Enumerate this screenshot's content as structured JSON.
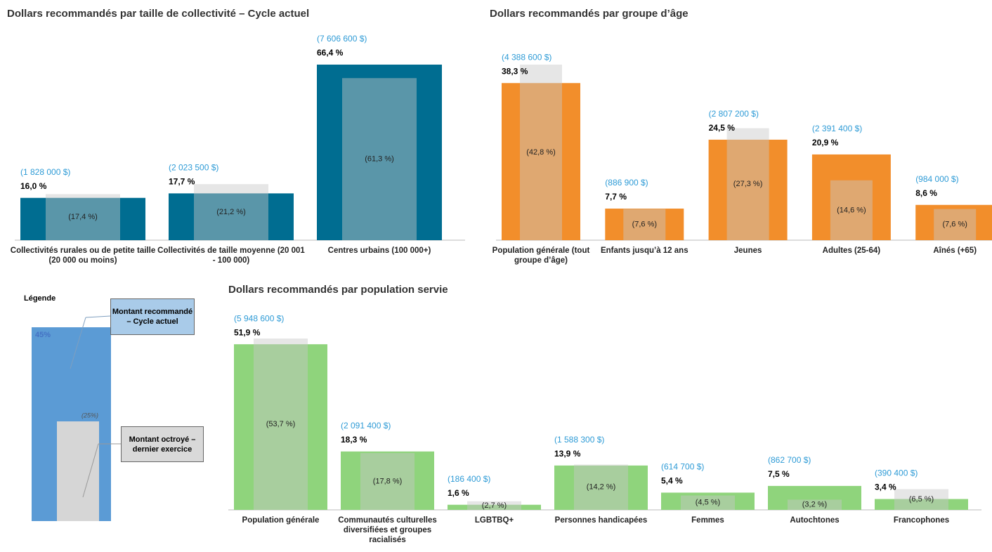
{
  "chart_data": [
    {
      "type": "bar",
      "title": "Dollars recommandés par taille de collectivité – Cycle actuel",
      "categories": [
        "Collectivités rurales ou de petite taille (20 000 ou moins)",
        "Collectivités de taille moyenne (20 001 - 100 000)",
        "Centres urbains (100 000+)"
      ],
      "series": [
        {
          "color": "#006d91",
          "values": [
            16.0,
            17.7,
            66.4
          ],
          "value_labels": [
            "16,0 %",
            "17,7 %",
            "66,4 %"
          ],
          "amount_labels": [
            "(1 828 000 $)",
            "(2 023 500 $)",
            "(7 606 600 $)"
          ]
        },
        {
          "color": "#c8c8c8",
          "values": [
            17.4,
            21.2,
            61.3
          ],
          "value_labels": [
            "(17,4 %)",
            "(21,2 %)",
            "(61,3 %)"
          ]
        }
      ]
    },
    {
      "type": "bar",
      "title": "Dollars recommandés par groupe d’âge",
      "categories": [
        "Population générale (tout groupe d’âge)",
        "Enfants jusqu’à 12 ans",
        "Jeunes",
        "Adultes (25-64)",
        "Aînés (+65)"
      ],
      "series": [
        {
          "color": "#f28e2b",
          "values": [
            38.3,
            7.7,
            24.5,
            20.9,
            8.6
          ],
          "value_labels": [
            "38,3 %",
            "7,7 %",
            "24,5 %",
            "20,9 %",
            "8,6 %"
          ],
          "amount_labels": [
            "(4 388 600 $)",
            "(886 900 $)",
            "(2 807 200 $)",
            "(2 391 400 $)",
            "(984 000 $)"
          ]
        },
        {
          "color": "#c8c8c8",
          "values": [
            42.8,
            7.6,
            27.3,
            14.6,
            7.6
          ],
          "value_labels": [
            "(42,8 %)",
            "(7,6 %)",
            "(27,3 %)",
            "(14,6 %)",
            "(7,6 %)"
          ]
        }
      ]
    },
    {
      "type": "bar",
      "title": "Dollars recommandés par population servie",
      "categories": [
        "Population générale",
        "Communautés culturelles diversifiées et groupes racialisés",
        "LGBTBQ+",
        "Personnes handicapées",
        "Femmes",
        "Autochtones",
        "Francophones"
      ],
      "series": [
        {
          "color": "#8fd47c",
          "values": [
            51.9,
            18.3,
            1.6,
            13.9,
            5.4,
            7.5,
            3.4
          ],
          "value_labels": [
            "51,9 %",
            "18,3 %",
            "1,6 %",
            "13,9 %",
            "5,4 %",
            "7,5 %",
            "3,4 %"
          ],
          "amount_labels": [
            "(5 948 600 $)",
            "(2 091 400 $)",
            "(186 400 $)",
            "(1 588 300 $)",
            "(614 700 $)",
            "(862 700 $)",
            "(390 400 $)"
          ]
        },
        {
          "color": "#c8c8c8",
          "values": [
            53.7,
            17.8,
            2.7,
            14.2,
            4.5,
            3.2,
            6.5
          ],
          "value_labels": [
            "(53,7 %)",
            "(17,8 %)",
            "(2,7 %)",
            "(14,2 %)",
            "(4,5 %)",
            "(3,2 %)",
            "(6,5 %)"
          ]
        }
      ]
    }
  ],
  "legend": {
    "title": "Légende",
    "example_current": "45%",
    "example_previous": "(25%)",
    "current": "Montant recommandé – Cycle actuel",
    "previous": "Montant octroyé – dernier exercice"
  }
}
